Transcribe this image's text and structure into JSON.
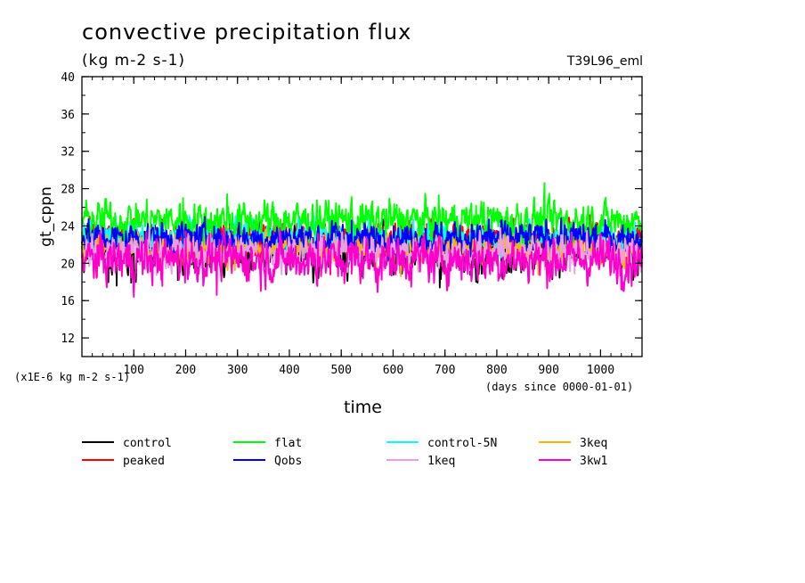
{
  "chart_data": {
    "type": "line",
    "title": "convective precipitation flux",
    "subtitle": "(kg m-2 s-1)",
    "run_label": "T39L96_eml",
    "xlabel": "time",
    "x_unit_label": "(days since 0000-01-01)",
    "ylabel": "gt_cppn",
    "y_unit_label": "(x1E-6 kg m-2 s-1)",
    "xlim": [
      0,
      1080
    ],
    "ylim": [
      10,
      40
    ],
    "x_ticks": [
      100,
      200,
      300,
      400,
      500,
      600,
      700,
      800,
      900,
      1000
    ],
    "y_ticks": [
      12,
      16,
      20,
      24,
      28,
      32,
      36,
      40
    ],
    "grid": false,
    "legend_position": "bottom",
    "series": [
      {
        "name": "control",
        "color": "#000000",
        "mean": 21.3,
        "spread": 1.3,
        "minima": [
          [
            67,
            17.6
          ],
          [
            185,
            18.2
          ],
          [
            275,
            18.8
          ],
          [
            690,
            17.4
          ],
          [
            905,
            19.4
          ]
        ],
        "maxima": [
          [
            15,
            24.4
          ],
          [
            265,
            24.8
          ]
        ]
      },
      {
        "name": "peaked",
        "color": "#ff0000",
        "mean": 22.6,
        "spread": 1.0,
        "minima": [
          [
            210,
            20.2
          ]
        ],
        "maxima": [
          [
            745,
            24.9
          ],
          [
            832,
            24.8
          ],
          [
            1075,
            24.2
          ]
        ]
      },
      {
        "name": "control-5N",
        "color": "#00ffff",
        "mean": 22.8,
        "spread": 1.0,
        "minima": [
          [
            455,
            19.6
          ]
        ],
        "maxima": [
          [
            330,
            24.8
          ]
        ]
      },
      {
        "name": "3keq",
        "color": "#ffb300",
        "mean": 21.6,
        "spread": 0.9,
        "minima": [
          [
            615,
            18.6
          ],
          [
            880,
            18.8
          ]
        ],
        "maxima": []
      },
      {
        "name": "flat",
        "color": "#00ff00",
        "mean": 24.6,
        "spread": 1.1,
        "minima": [
          [
            565,
            21.4
          ]
        ],
        "maxima": [
          [
            45,
            26.9
          ],
          [
            195,
            27.0
          ],
          [
            280,
            27.4
          ],
          [
            520,
            27.1
          ],
          [
            775,
            26.5
          ],
          [
            892,
            28.6
          ]
        ]
      },
      {
        "name": "Qobs",
        "color": "#0000ff",
        "mean": 22.7,
        "spread": 0.9,
        "minima": [],
        "maxima": [
          [
            520,
            24.6
          ],
          [
            785,
            24.7
          ],
          [
            895,
            24.7
          ]
        ]
      },
      {
        "name": "1keq",
        "color": "#e8a0e0",
        "mean": 21.2,
        "spread": 1.0,
        "minima": [
          [
            385,
            18.8
          ],
          [
            950,
            18.9
          ]
        ],
        "maxima": [
          [
            130,
            23.8
          ]
        ]
      },
      {
        "name": "3kw1",
        "color": "#ff00cc",
        "mean": 20.4,
        "spread": 1.3,
        "minima": [
          [
            100,
            16.4
          ],
          [
            260,
            16.6
          ],
          [
            570,
            16.9
          ],
          [
            1040,
            17.2
          ]
        ],
        "maxima": [
          [
            200,
            23.4
          ],
          [
            455,
            23.2
          ],
          [
            660,
            23.2
          ]
        ]
      }
    ]
  },
  "legend": [
    {
      "label": "control",
      "color": "#000000"
    },
    {
      "label": "flat",
      "color": "#00ff00"
    },
    {
      "label": "control-5N",
      "color": "#00ffff"
    },
    {
      "label": "3keq",
      "color": "#ffb300"
    },
    {
      "label": "peaked",
      "color": "#ff0000"
    },
    {
      "label": "Qobs",
      "color": "#0000ff"
    },
    {
      "label": "1keq",
      "color": "#e8a0e0"
    },
    {
      "label": "3kw1",
      "color": "#ff00cc"
    }
  ]
}
